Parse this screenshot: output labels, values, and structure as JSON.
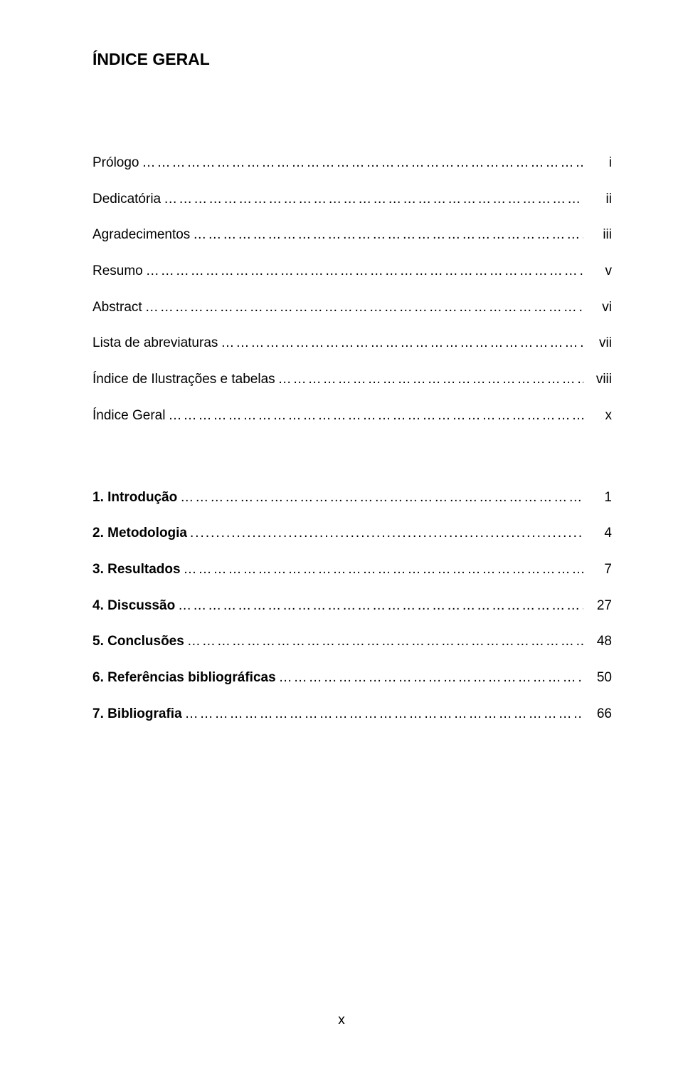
{
  "title": "ÍNDICE GERAL",
  "colors": {
    "background": "#ffffff",
    "text": "#000000"
  },
  "typography": {
    "font_family": "Arial",
    "title_fontsize_pt": 17,
    "body_fontsize_pt": 14,
    "title_weight": "bold",
    "main_entries_weight": "bold"
  },
  "dot_leader_char": ".",
  "front_matter": [
    {
      "label": "Prólogo",
      "trailing": "..",
      "page": "i"
    },
    {
      "label": "Dedicatória",
      "trailing": ".",
      "page": "ii"
    },
    {
      "label": "Agradecimentos",
      "trailing": ".",
      "page": "iii"
    },
    {
      "label": "Resumo",
      "trailing": "..",
      "page": "v"
    },
    {
      "label": "Abstract",
      "trailing": "...",
      "page": "vi"
    },
    {
      "label": "Lista de abreviaturas",
      "trailing": "…",
      "page": "vii"
    },
    {
      "label": "Índice de Ilustrações e tabelas",
      "trailing": "...",
      "page": "viii"
    },
    {
      "label": "Índice Geral",
      "trailing": "…",
      "page": "x"
    }
  ],
  "main_entries": [
    {
      "label": "1. Introdução",
      "trailing": "…",
      "page": "1"
    },
    {
      "label": "2. Metodologia",
      "trailing": "...",
      "page": "4"
    },
    {
      "label": "3. Resultados",
      "trailing": "..",
      "page": "7"
    },
    {
      "label": "4. Discussão",
      "trailing": "…",
      "page": "27"
    },
    {
      "label": "5. Conclusões",
      "trailing": "...",
      "page": "48"
    },
    {
      "label": "6. Referências bibliográficas",
      "trailing": "..",
      "page": "50"
    },
    {
      "label": "7. Bibliografia",
      "trailing": ".....",
      "page": "66"
    }
  ],
  "footer_page_number": "x"
}
